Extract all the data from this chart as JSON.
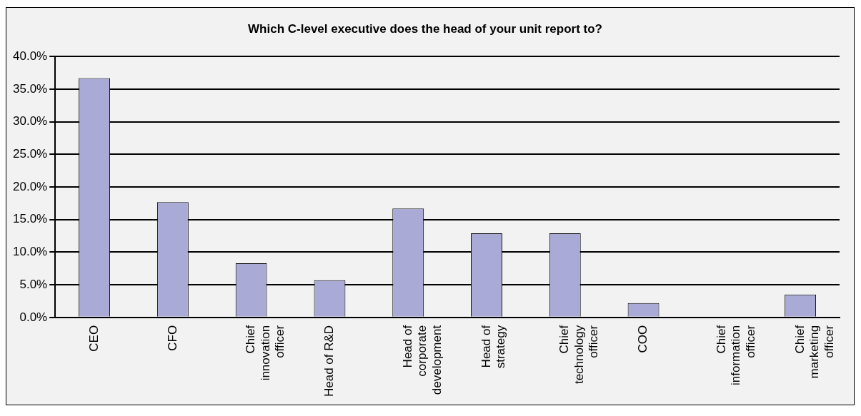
{
  "chart_data": {
    "type": "bar",
    "title": "Which C-level executive does the head of your unit report to?",
    "categories": [
      "CEO",
      "CFO",
      "Chief innovation officer",
      "Head of R&D",
      "Head of corporate development",
      "Head of strategy",
      "Chief technology officer",
      "COO",
      "Chief information officer",
      "Chief marketing officer"
    ],
    "values": [
      36.7,
      17.7,
      8.3,
      5.7,
      16.7,
      12.9,
      12.9,
      2.2,
      0,
      3.5
    ],
    "color": "#aaaad6",
    "ylim": [
      0,
      40
    ],
    "yticks": [
      {
        "value": 0,
        "label": "0.0%"
      },
      {
        "value": 5,
        "label": "5.0%"
      },
      {
        "value": 10,
        "label": "10.0%"
      },
      {
        "value": 15,
        "label": "15.0%"
      },
      {
        "value": 20,
        "label": "20.0%"
      },
      {
        "value": 25,
        "label": "25.0%"
      },
      {
        "value": 30,
        "label": "30.0%"
      },
      {
        "value": 35,
        "label": "35.0%"
      },
      {
        "value": 40,
        "label": "40.0%"
      }
    ],
    "grid": "y",
    "legend": false
  }
}
